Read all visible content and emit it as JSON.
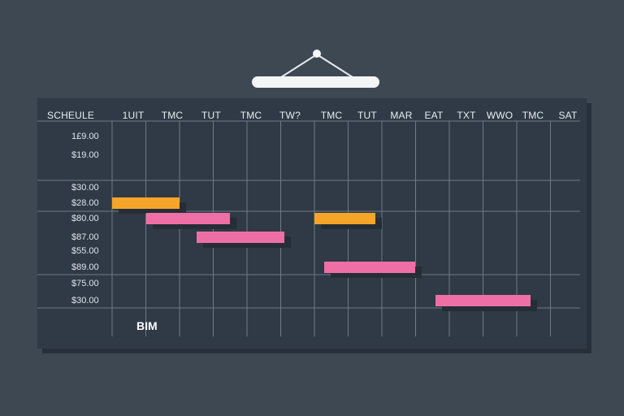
{
  "schedule": {
    "corner_label": "SCHEULE",
    "columns": [
      "1UIT",
      "TMC",
      "TUT",
      "TMC",
      "TW?",
      "TMC",
      "TUT",
      "MAR",
      "EAT",
      "TXT",
      "WWO",
      "TMC",
      "SAT"
    ],
    "rows": [
      "1£9.00",
      "$19.00",
      "$30.00",
      "$28.00",
      "$80.00",
      "$87.00",
      "$55.00",
      "$89.00",
      "$75.00",
      "$30.00"
    ],
    "footer_label": "BIM",
    "bars": [
      {
        "color": "orange",
        "start": 0.0,
        "end": 2.0,
        "row": 3
      },
      {
        "color": "pink",
        "start": 1.0,
        "end": 3.5,
        "row": 4
      },
      {
        "color": "orange",
        "start": 6.0,
        "end": 7.8,
        "row": 4
      },
      {
        "color": "pink",
        "start": 2.5,
        "end": 5.1,
        "row": 5
      },
      {
        "color": "pink",
        "start": 6.3,
        "end": 9.0,
        "row": 7
      },
      {
        "color": "pink",
        "start": 9.6,
        "end": 12.4,
        "row": 9
      }
    ]
  },
  "colors": {
    "orange": "#f5a52a",
    "pink": "#ee6fa6",
    "grid": "#6e7a86"
  }
}
